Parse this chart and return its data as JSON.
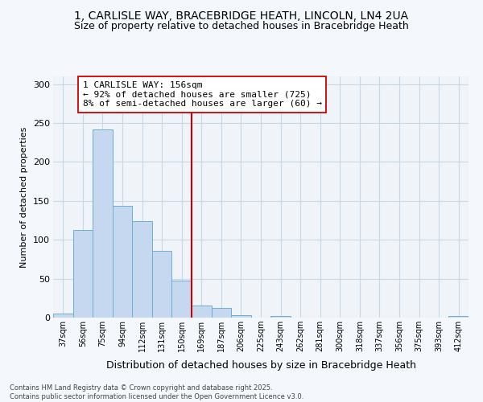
{
  "title_line1": "1, CARLISLE WAY, BRACEBRIDGE HEATH, LINCOLN, LN4 2UA",
  "title_line2": "Size of property relative to detached houses in Bracebridge Heath",
  "xlabel": "Distribution of detached houses by size in Bracebridge Heath",
  "ylabel": "Number of detached properties",
  "categories": [
    "37sqm",
    "56sqm",
    "75sqm",
    "94sqm",
    "112sqm",
    "131sqm",
    "150sqm",
    "169sqm",
    "187sqm",
    "206sqm",
    "225sqm",
    "243sqm",
    "262sqm",
    "281sqm",
    "300sqm",
    "318sqm",
    "337sqm",
    "356sqm",
    "375sqm",
    "393sqm",
    "412sqm"
  ],
  "values": [
    5,
    113,
    242,
    144,
    124,
    86,
    48,
    15,
    12,
    3,
    0,
    2,
    0,
    0,
    0,
    0,
    0,
    0,
    0,
    0,
    2
  ],
  "bar_color": "#c5d8f0",
  "bar_edge_color": "#6baed6",
  "property_line_x": 6.5,
  "annotation_title": "1 CARLISLE WAY: 156sqm",
  "annotation_line1": "← 92% of detached houses are smaller (725)",
  "annotation_line2": "8% of semi-detached houses are larger (60) →",
  "vline_color": "#cc0000",
  "fig_bg_color": "#f4f7fb",
  "plot_bg_color": "#f0f4f8",
  "grid_color": "#c8d8e8",
  "footer_line1": "Contains HM Land Registry data © Crown copyright and database right 2025.",
  "footer_line2": "Contains public sector information licensed under the Open Government Licence v3.0.",
  "ylim": [
    0,
    310
  ],
  "yticks": [
    0,
    50,
    100,
    150,
    200,
    250,
    300
  ],
  "title1_fontsize": 10,
  "title2_fontsize": 9,
  "ylabel_fontsize": 8,
  "xlabel_fontsize": 9,
  "tick_fontsize": 8,
  "annot_fontsize": 8
}
